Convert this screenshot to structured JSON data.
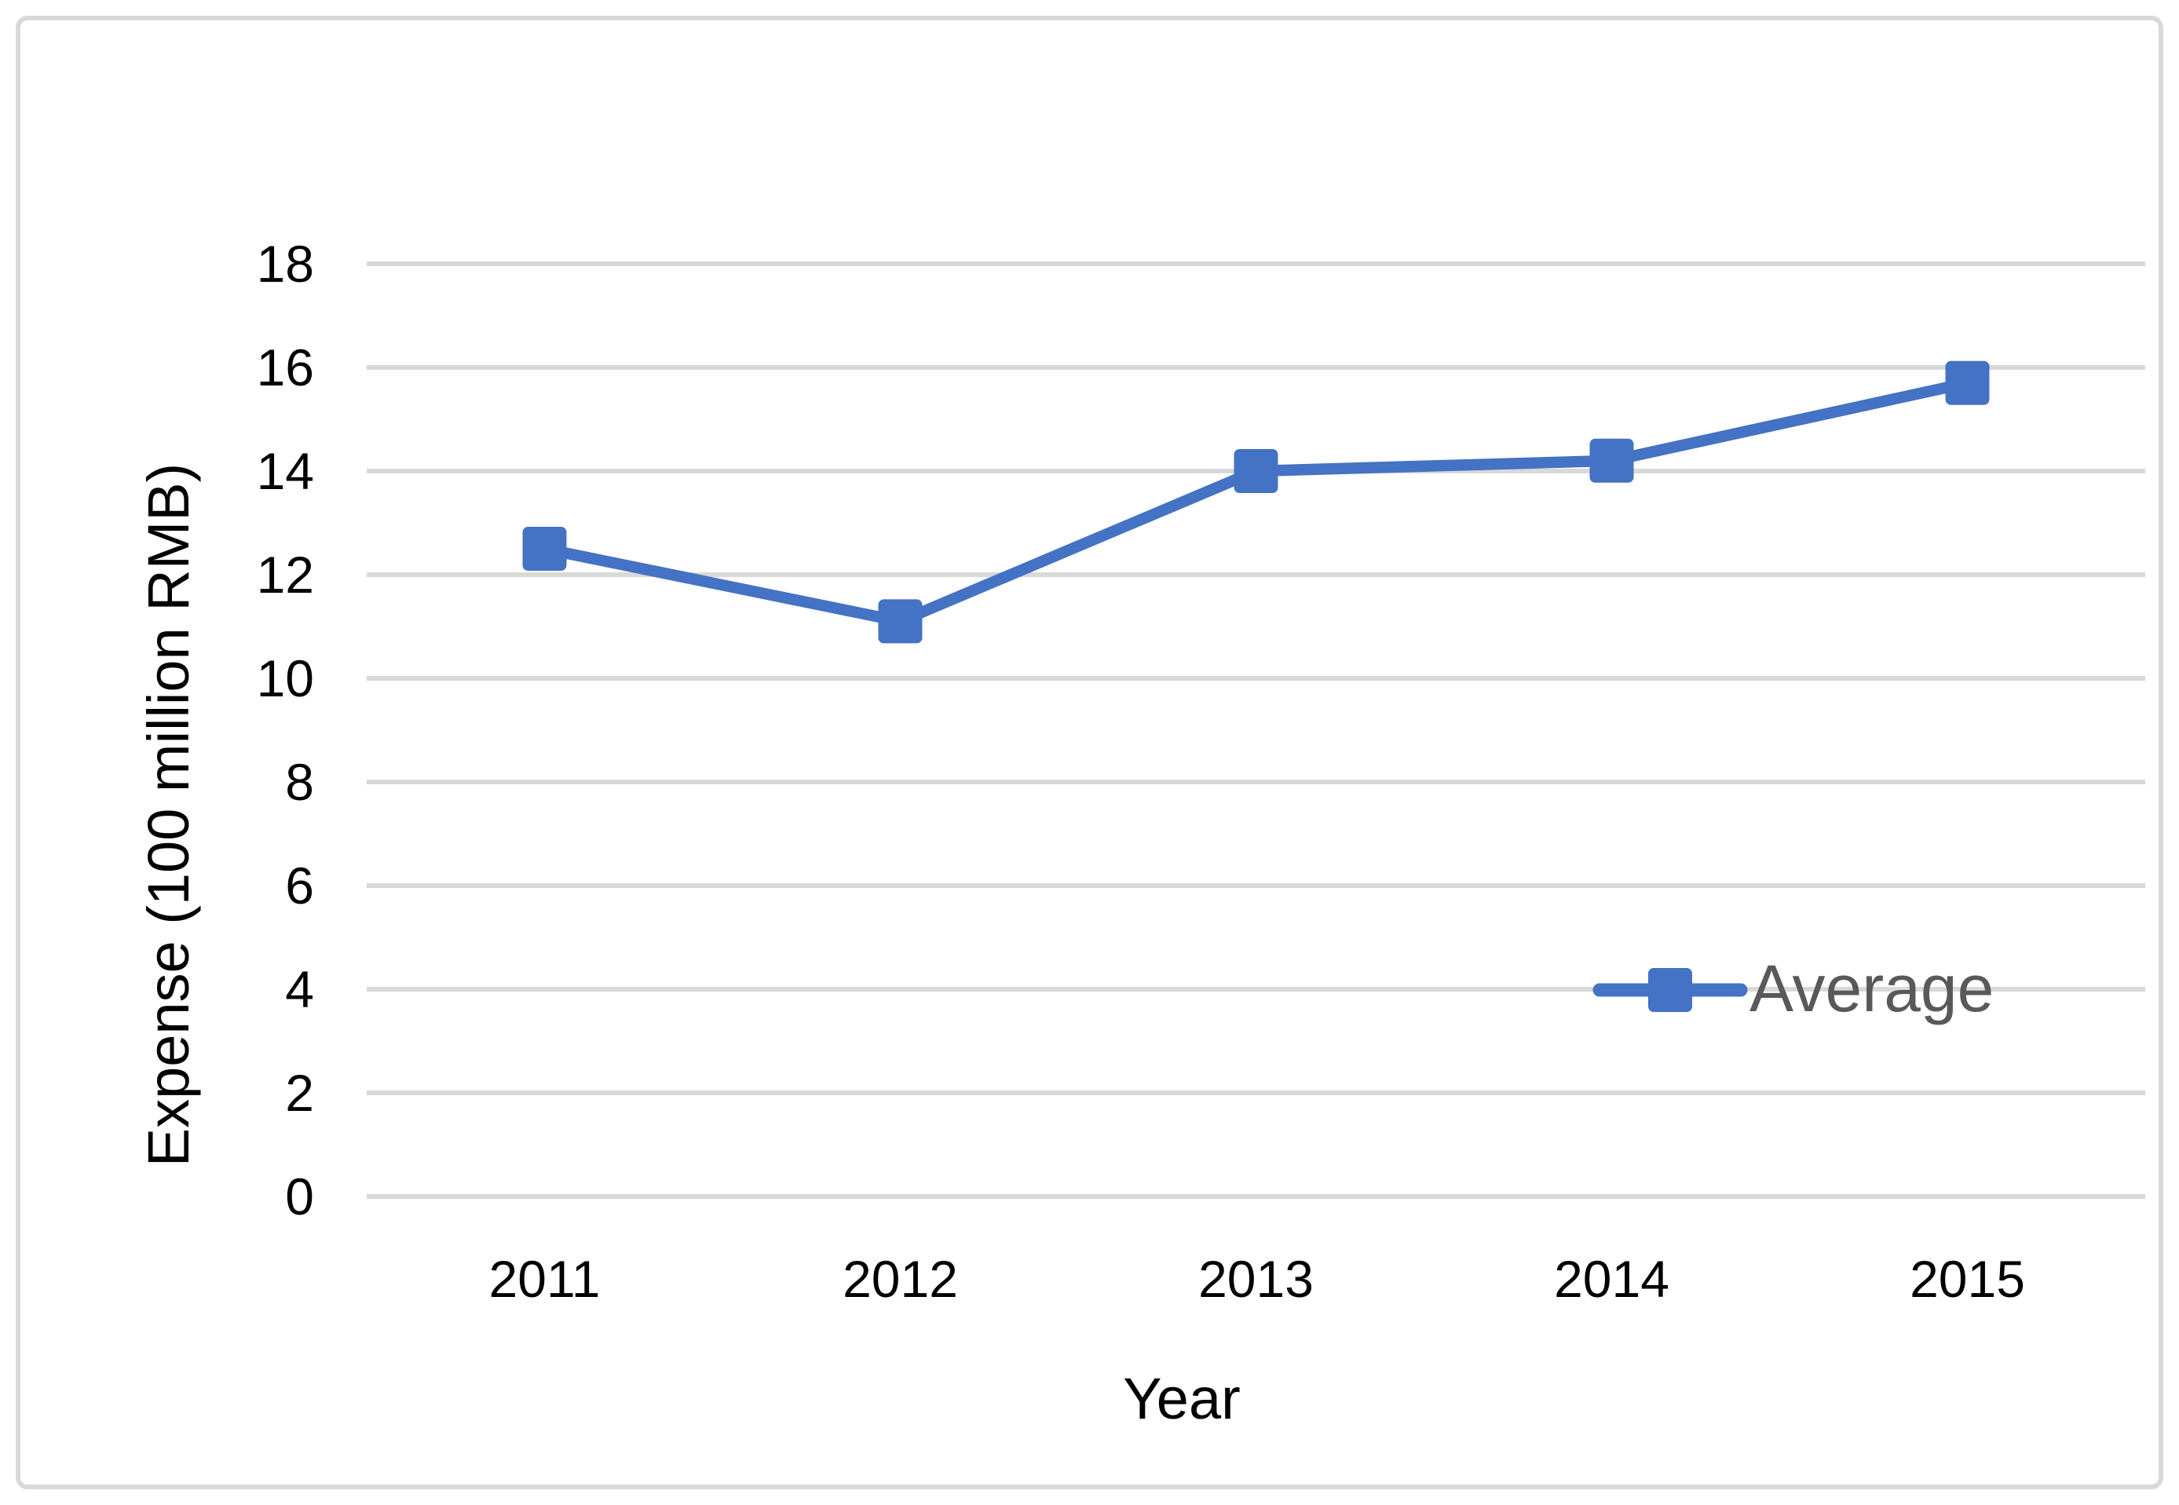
{
  "chart": {
    "xlabel": "Year",
    "ylabel": "Expense (100 million RMB)",
    "legend_label": "Average"
  },
  "chart_data": {
    "type": "line",
    "title": "",
    "x": [
      "2011",
      "2012",
      "2013",
      "2014",
      "2015"
    ],
    "series": [
      {
        "name": "Average",
        "values": [
          12.5,
          11.1,
          14.0,
          14.2,
          15.7
        ]
      }
    ],
    "xlabel": "Year",
    "ylabel": "Expense (100 million RMB)",
    "ylim": [
      0,
      18
    ],
    "yticks": [
      0,
      2,
      4,
      6,
      8,
      10,
      12,
      14,
      16,
      18
    ],
    "grid": "horizontal",
    "marker": "square",
    "legend": {
      "label": "Average",
      "position": "middle-right"
    },
    "colors": {
      "series": "#4472C4",
      "gridline": "#D9D9D9",
      "border": "#D9D9D9",
      "axis_text": "#000000",
      "legend_text": "#595959",
      "background": "#FFFFFF"
    }
  }
}
